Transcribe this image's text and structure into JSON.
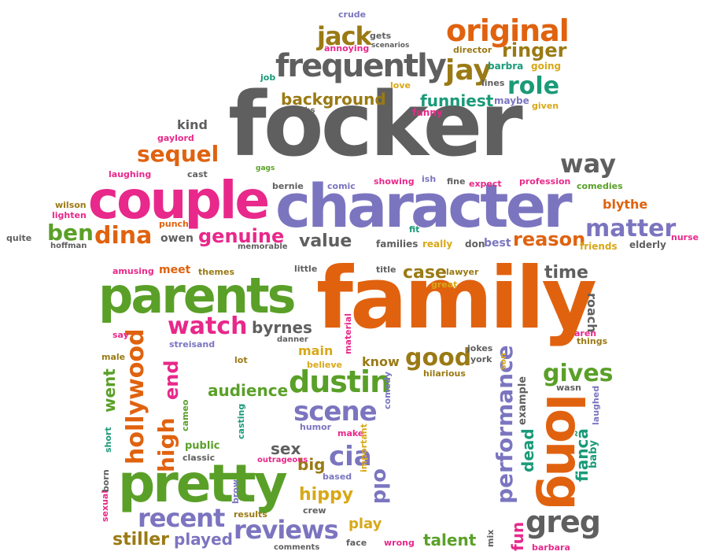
{
  "palette": {
    "gray": "#5f5f5f",
    "orange": "#e0620f",
    "green": "#5aa028",
    "purple": "#7b75c0",
    "pink": "#e8288a",
    "olive": "#9a7a14",
    "teal": "#1a9a78",
    "yellow": "#d8a818"
  },
  "words": [
    {
      "text": "focker",
      "color": "gray"
    },
    {
      "text": "family",
      "color": "orange"
    },
    {
      "text": "character",
      "color": "purple"
    },
    {
      "text": "couple",
      "color": "pink"
    },
    {
      "text": "parents",
      "color": "green"
    },
    {
      "text": "pretty",
      "color": "green"
    },
    {
      "text": "long",
      "color": "orange"
    },
    {
      "text": "frequently",
      "color": "gray"
    },
    {
      "text": "original",
      "color": "orange"
    },
    {
      "text": "dustin",
      "color": "green"
    },
    {
      "text": "scene",
      "color": "purple"
    },
    {
      "text": "performance",
      "color": "purple"
    },
    {
      "text": "matter",
      "color": "purple"
    },
    {
      "text": "hollywood",
      "color": "orange"
    },
    {
      "text": "greg",
      "color": "gray"
    },
    {
      "text": "reviews",
      "color": "purple"
    },
    {
      "text": "recent",
      "color": "purple"
    },
    {
      "text": "jack",
      "color": "olive"
    },
    {
      "text": "jay",
      "color": "olive"
    },
    {
      "text": "role",
      "color": "teal"
    },
    {
      "text": "ringer",
      "color": "olive"
    },
    {
      "text": "way",
      "color": "gray"
    },
    {
      "text": "sequel",
      "color": "orange"
    },
    {
      "text": "dina",
      "color": "orange"
    },
    {
      "text": "ben",
      "color": "green"
    },
    {
      "text": "genuine",
      "color": "pink"
    },
    {
      "text": "value",
      "color": "gray"
    },
    {
      "text": "reason",
      "color": "orange"
    },
    {
      "text": "watch",
      "color": "pink"
    },
    {
      "text": "good",
      "color": "olive"
    },
    {
      "text": "gives",
      "color": "green"
    },
    {
      "text": "cia",
      "color": "purple"
    },
    {
      "text": "old",
      "color": "purple"
    },
    {
      "text": "high",
      "color": "orange"
    },
    {
      "text": "end",
      "color": "pink"
    },
    {
      "text": "stiller",
      "color": "olive"
    },
    {
      "text": "played",
      "color": "purple"
    },
    {
      "text": "talent",
      "color": "green"
    },
    {
      "text": "hippy",
      "color": "yellow"
    },
    {
      "text": "audience",
      "color": "green"
    },
    {
      "text": "background",
      "color": "olive"
    },
    {
      "text": "funniest",
      "color": "teal"
    },
    {
      "text": "case",
      "color": "olive"
    },
    {
      "text": "time",
      "color": "gray"
    },
    {
      "text": "byrnes",
      "color": "gray"
    },
    {
      "text": "sex",
      "color": "gray"
    },
    {
      "text": "big",
      "color": "olive"
    },
    {
      "text": "went",
      "color": "green"
    },
    {
      "text": "fun",
      "color": "pink"
    },
    {
      "text": "dead",
      "color": "teal"
    },
    {
      "text": "fiancã",
      "color": "teal"
    },
    {
      "text": "play",
      "color": "yellow"
    },
    {
      "text": "know",
      "color": "olive"
    },
    {
      "text": "main",
      "color": "yellow"
    },
    {
      "text": "roach",
      "color": "gray"
    },
    {
      "text": "blythe",
      "color": "orange"
    },
    {
      "text": "crude",
      "color": "purple"
    },
    {
      "text": "gets",
      "color": "gray"
    },
    {
      "text": "annoying",
      "color": "pink"
    },
    {
      "text": "scenarios",
      "color": "gray"
    },
    {
      "text": "director",
      "color": "olive"
    },
    {
      "text": "barbra",
      "color": "teal"
    },
    {
      "text": "going",
      "color": "yellow"
    },
    {
      "text": "job",
      "color": "teal"
    },
    {
      "text": "love",
      "color": "yellow"
    },
    {
      "text": "lines",
      "color": "gray"
    },
    {
      "text": "maybe",
      "color": "purple"
    },
    {
      "text": "given",
      "color": "yellow"
    },
    {
      "text": "laughs",
      "color": "gray"
    },
    {
      "text": "funny",
      "color": "pink"
    },
    {
      "text": "kind",
      "color": "gray"
    },
    {
      "text": "gaylord",
      "color": "pink"
    },
    {
      "text": "laughing",
      "color": "pink"
    },
    {
      "text": "cast",
      "color": "gray"
    },
    {
      "text": "gags",
      "color": "green"
    },
    {
      "text": "bernie",
      "color": "gray"
    },
    {
      "text": "comic",
      "color": "purple"
    },
    {
      "text": "showing",
      "color": "pink"
    },
    {
      "text": "ish",
      "color": "purple"
    },
    {
      "text": "fine",
      "color": "gray"
    },
    {
      "text": "expect",
      "color": "pink"
    },
    {
      "text": "profession",
      "color": "pink"
    },
    {
      "text": "comedies",
      "color": "green"
    },
    {
      "text": "wilson",
      "color": "olive"
    },
    {
      "text": "lighten",
      "color": "pink"
    },
    {
      "text": "quite",
      "color": "gray"
    },
    {
      "text": "hoffman",
      "color": "gray"
    },
    {
      "text": "punch",
      "color": "orange"
    },
    {
      "text": "owen",
      "color": "gray"
    },
    {
      "text": "memorable",
      "color": "gray"
    },
    {
      "text": "fit",
      "color": "teal"
    },
    {
      "text": "families",
      "color": "gray"
    },
    {
      "text": "really",
      "color": "yellow"
    },
    {
      "text": "don",
      "color": "gray"
    },
    {
      "text": "best",
      "color": "purple"
    },
    {
      "text": "friends",
      "color": "yellow"
    },
    {
      "text": "elderly",
      "color": "gray"
    },
    {
      "text": "nurse",
      "color": "pink"
    },
    {
      "text": "amusing",
      "color": "pink"
    },
    {
      "text": "meet",
      "color": "orange"
    },
    {
      "text": "themes",
      "color": "olive"
    },
    {
      "text": "little",
      "color": "gray"
    },
    {
      "text": "title",
      "color": "gray"
    },
    {
      "text": "lawyer",
      "color": "olive"
    },
    {
      "text": "great",
      "color": "yellow"
    },
    {
      "text": "say",
      "color": "pink"
    },
    {
      "text": "streisand",
      "color": "purple"
    },
    {
      "text": "danner",
      "color": "gray"
    },
    {
      "text": "material",
      "color": "pink"
    },
    {
      "text": "jokes",
      "color": "gray"
    },
    {
      "text": "york",
      "color": "gray"
    },
    {
      "text": "son",
      "color": "yellow"
    },
    {
      "text": "aren",
      "color": "pink"
    },
    {
      "text": "things",
      "color": "olive"
    },
    {
      "text": "male",
      "color": "olive"
    },
    {
      "text": "lot",
      "color": "olive"
    },
    {
      "text": "believe",
      "color": "yellow"
    },
    {
      "text": "hilarious",
      "color": "olive"
    },
    {
      "text": "comedy",
      "color": "purple"
    },
    {
      "text": "example",
      "color": "gray"
    },
    {
      "text": "wasn",
      "color": "gray"
    },
    {
      "text": "laughed",
      "color": "purple"
    },
    {
      "text": "cameo",
      "color": "green"
    },
    {
      "text": "casting",
      "color": "teal"
    },
    {
      "text": "humor",
      "color": "purple"
    },
    {
      "text": "make",
      "color": "pink"
    },
    {
      "text": "public",
      "color": "green"
    },
    {
      "text": "classic",
      "color": "gray"
    },
    {
      "text": "outrageous",
      "color": "pink"
    },
    {
      "text": "important",
      "color": "yellow"
    },
    {
      "text": "short",
      "color": "teal"
    },
    {
      "text": "baby",
      "color": "teal"
    },
    {
      "text": "based",
      "color": "purple"
    },
    {
      "text": "sexual",
      "color": "pink"
    },
    {
      "text": "born",
      "color": "gray"
    },
    {
      "text": "brow",
      "color": "purple"
    },
    {
      "text": "results",
      "color": "olive"
    },
    {
      "text": "crew",
      "color": "gray"
    },
    {
      "text": "comments",
      "color": "gray"
    },
    {
      "text": "face",
      "color": "gray"
    },
    {
      "text": "wrong",
      "color": "pink"
    },
    {
      "text": "mix",
      "color": "gray"
    },
    {
      "text": "barbara",
      "color": "pink"
    }
  ]
}
